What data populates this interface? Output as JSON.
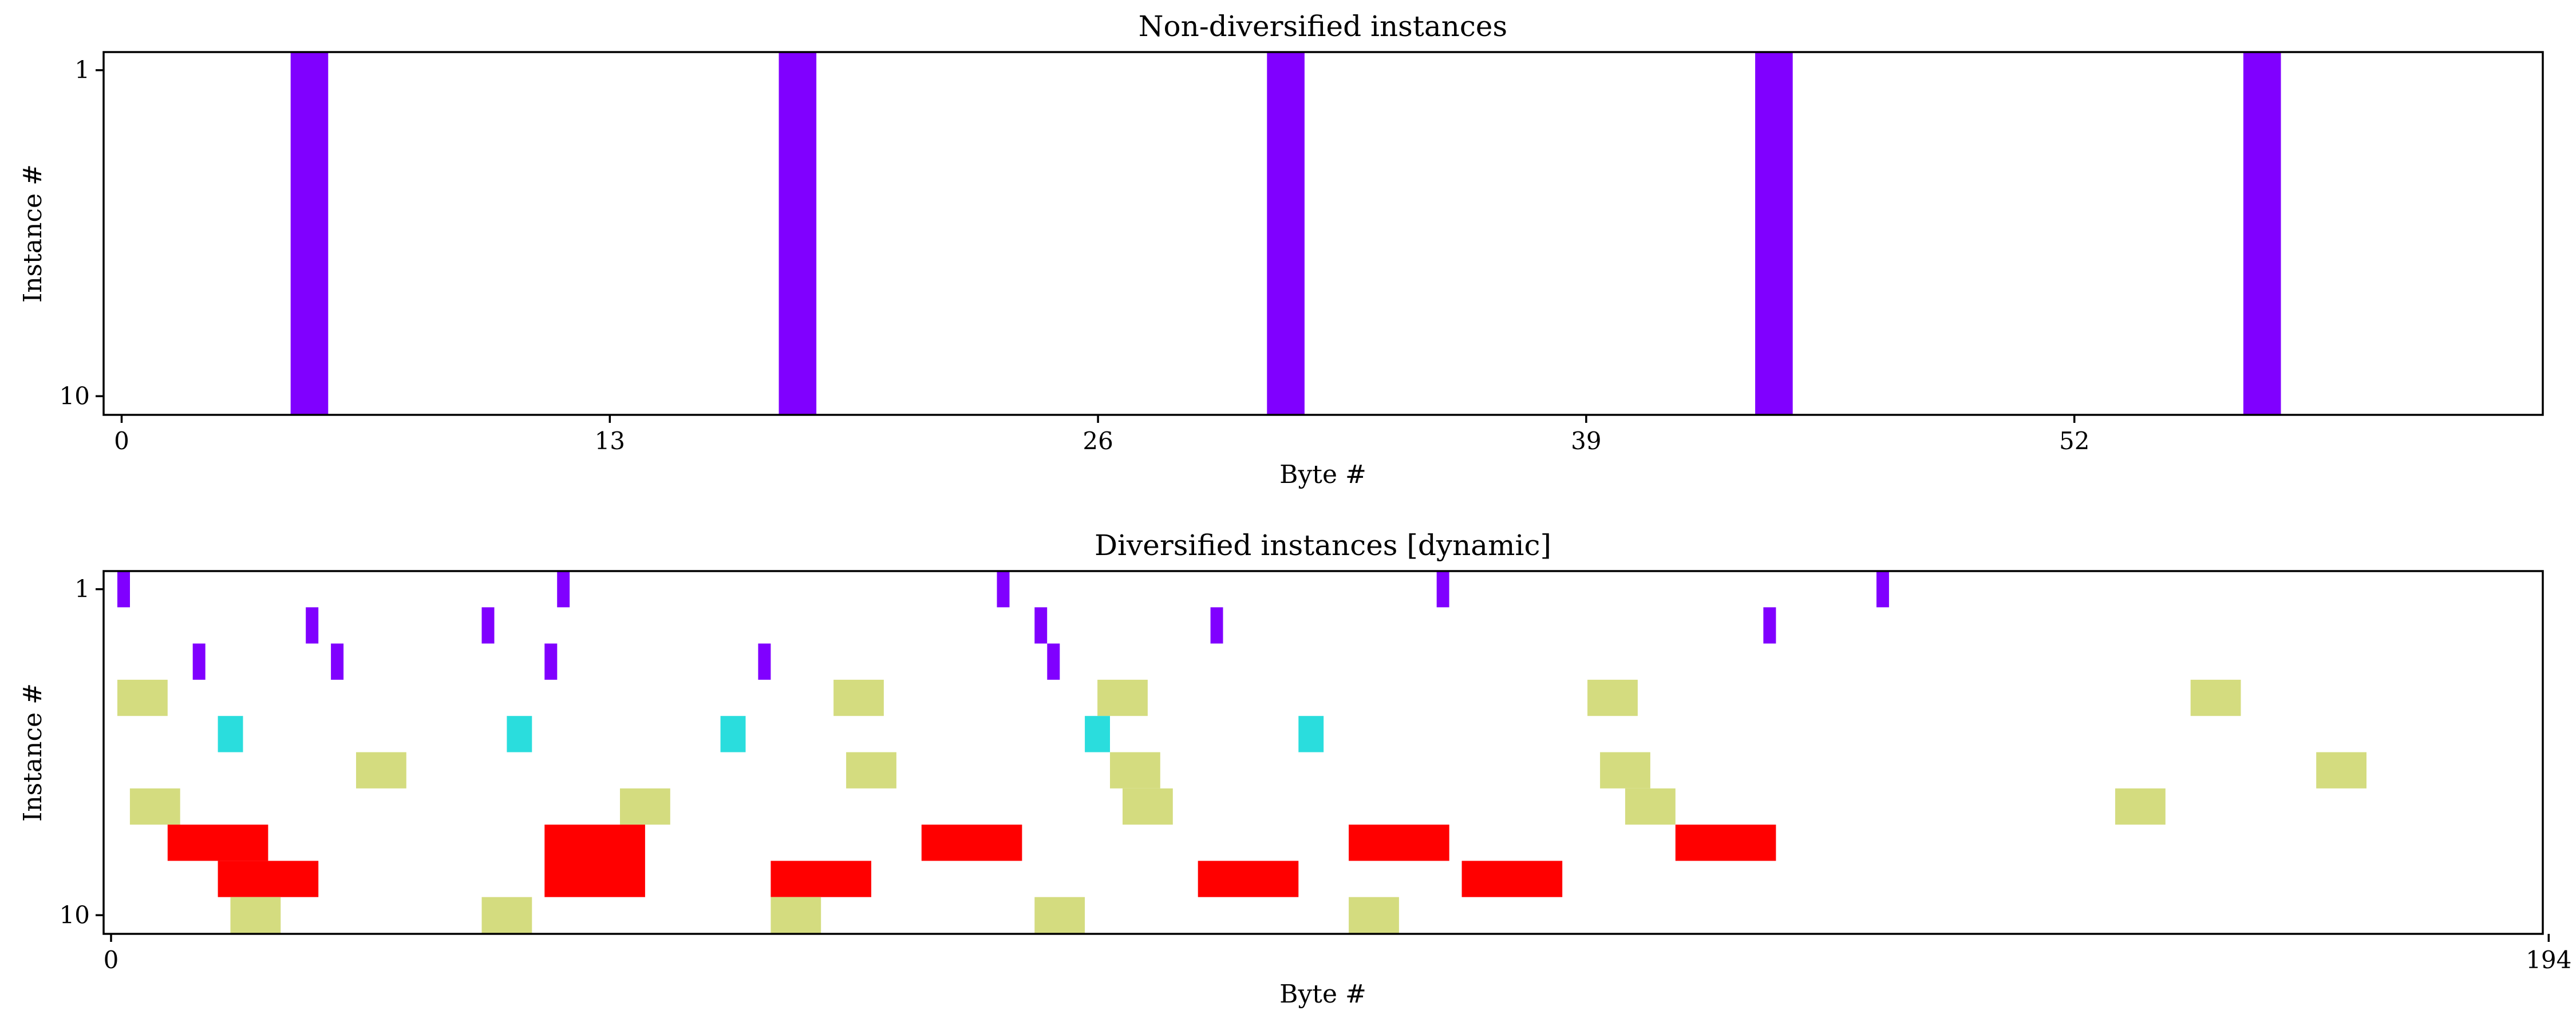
{
  "chart_data": [
    {
      "type": "heatmap",
      "title": "Non-diversified instances",
      "xlabel": "Byte #",
      "ylabel": "Instance #",
      "xlim": [
        0,
        62
      ],
      "ylim": [
        1,
        10
      ],
      "xticks": [
        "0",
        "13",
        "26",
        "39",
        "52"
      ],
      "yticks": [
        "1",
        "10"
      ],
      "grid": false,
      "blocks": [
        {
          "x0": 4.5,
          "x1": 5.5,
          "y0": 1,
          "y1": 10,
          "color": "#8000ff"
        },
        {
          "x0": 17.5,
          "x1": 18.5,
          "y0": 1,
          "y1": 10,
          "color": "#8000ff"
        },
        {
          "x0": 30.5,
          "x1": 31.5,
          "y0": 1,
          "y1": 10,
          "color": "#8000ff"
        },
        {
          "x0": 43.5,
          "x1": 44.5,
          "y0": 1,
          "y1": 10,
          "color": "#8000ff"
        },
        {
          "x0": 56.5,
          "x1": 57.5,
          "y0": 1,
          "y1": 10,
          "color": "#8000ff"
        }
      ]
    },
    {
      "type": "heatmap",
      "title": "Diversified instances [dynamic]",
      "xlabel": "Byte #",
      "ylabel": "Instance #",
      "xlim": [
        0,
        194
      ],
      "ylim": [
        1,
        10
      ],
      "xticks": [
        "0",
        "194"
      ],
      "yticks": [
        "1",
        "10"
      ],
      "grid": false,
      "blocks": [
        {
          "x0": 0.5,
          "x1": 1.5,
          "y0": 1,
          "y1": 1,
          "color": "#8000ff"
        },
        {
          "x0": 35.5,
          "x1": 36.5,
          "y0": 1,
          "y1": 1,
          "color": "#8000ff"
        },
        {
          "x0": 70.5,
          "x1": 71.5,
          "y0": 1,
          "y1": 1,
          "color": "#8000ff"
        },
        {
          "x0": 105.5,
          "x1": 106.5,
          "y0": 1,
          "y1": 1,
          "color": "#8000ff"
        },
        {
          "x0": 140.5,
          "x1": 141.5,
          "y0": 1,
          "y1": 1,
          "color": "#8000ff"
        },
        {
          "x0": 15.5,
          "x1": 16.5,
          "y0": 2,
          "y1": 2,
          "color": "#8000ff"
        },
        {
          "x0": 29.5,
          "x1": 30.5,
          "y0": 2,
          "y1": 2,
          "color": "#8000ff"
        },
        {
          "x0": 73.5,
          "x1": 74.5,
          "y0": 2,
          "y1": 2,
          "color": "#8000ff"
        },
        {
          "x0": 87.5,
          "x1": 88.5,
          "y0": 2,
          "y1": 2,
          "color": "#8000ff"
        },
        {
          "x0": 131.5,
          "x1": 132.5,
          "y0": 2,
          "y1": 2,
          "color": "#8000ff"
        },
        {
          "x0": 6.5,
          "x1": 7.5,
          "y0": 3,
          "y1": 3,
          "color": "#8000ff"
        },
        {
          "x0": 17.5,
          "x1": 18.5,
          "y0": 3,
          "y1": 3,
          "color": "#8000ff"
        },
        {
          "x0": 34.5,
          "x1": 35.5,
          "y0": 3,
          "y1": 3,
          "color": "#8000ff"
        },
        {
          "x0": 51.5,
          "x1": 52.5,
          "y0": 3,
          "y1": 3,
          "color": "#8000ff"
        },
        {
          "x0": 74.5,
          "x1": 75.5,
          "y0": 3,
          "y1": 3,
          "color": "#8000ff"
        },
        {
          "x0": 0.5,
          "x1": 4.5,
          "y0": 4,
          "y1": 4,
          "color": "#d4dc7f"
        },
        {
          "x0": 57.5,
          "x1": 61.5,
          "y0": 4,
          "y1": 4,
          "color": "#d4dc7f"
        },
        {
          "x0": 78.5,
          "x1": 82.5,
          "y0": 4,
          "y1": 4,
          "color": "#d4dc7f"
        },
        {
          "x0": 117.5,
          "x1": 121.5,
          "y0": 4,
          "y1": 4,
          "color": "#d4dc7f"
        },
        {
          "x0": 165.5,
          "x1": 169.5,
          "y0": 4,
          "y1": 4,
          "color": "#d4dc7f"
        },
        {
          "x0": 8.5,
          "x1": 10.5,
          "y0": 5,
          "y1": 5,
          "color": "#2adddd"
        },
        {
          "x0": 31.5,
          "x1": 33.5,
          "y0": 5,
          "y1": 5,
          "color": "#2adddd"
        },
        {
          "x0": 48.5,
          "x1": 50.5,
          "y0": 5,
          "y1": 5,
          "color": "#2adddd"
        },
        {
          "x0": 77.5,
          "x1": 79.5,
          "y0": 5,
          "y1": 5,
          "color": "#2adddd"
        },
        {
          "x0": 94.5,
          "x1": 96.5,
          "y0": 5,
          "y1": 5,
          "color": "#2adddd"
        },
        {
          "x0": 19.5,
          "x1": 23.5,
          "y0": 6,
          "y1": 6,
          "color": "#d4dc7f"
        },
        {
          "x0": 58.5,
          "x1": 62.5,
          "y0": 6,
          "y1": 6,
          "color": "#d4dc7f"
        },
        {
          "x0": 79.5,
          "x1": 83.5,
          "y0": 6,
          "y1": 6,
          "color": "#d4dc7f"
        },
        {
          "x0": 118.5,
          "x1": 122.5,
          "y0": 6,
          "y1": 6,
          "color": "#d4dc7f"
        },
        {
          "x0": 175.5,
          "x1": 179.5,
          "y0": 6,
          "y1": 6,
          "color": "#d4dc7f"
        },
        {
          "x0": 1.5,
          "x1": 5.5,
          "y0": 7,
          "y1": 7,
          "color": "#d4dc7f"
        },
        {
          "x0": 40.5,
          "x1": 44.5,
          "y0": 7,
          "y1": 7,
          "color": "#d4dc7f"
        },
        {
          "x0": 80.5,
          "x1": 84.5,
          "y0": 7,
          "y1": 7,
          "color": "#d4dc7f"
        },
        {
          "x0": 120.5,
          "x1": 124.5,
          "y0": 7,
          "y1": 7,
          "color": "#d4dc7f"
        },
        {
          "x0": 159.5,
          "x1": 163.5,
          "y0": 7,
          "y1": 7,
          "color": "#d4dc7f"
        },
        {
          "x0": 4.5,
          "x1": 12.5,
          "y0": 8,
          "y1": 8,
          "color": "#ff0000"
        },
        {
          "x0": 34.5,
          "x1": 42.5,
          "y0": 8,
          "y1": 9,
          "color": "#ff0000"
        },
        {
          "x0": 64.5,
          "x1": 72.5,
          "y0": 8,
          "y1": 8,
          "color": "#ff0000"
        },
        {
          "x0": 98.5,
          "x1": 106.5,
          "y0": 8,
          "y1": 8,
          "color": "#ff0000"
        },
        {
          "x0": 124.5,
          "x1": 132.5,
          "y0": 8,
          "y1": 8,
          "color": "#ff0000"
        },
        {
          "x0": 8.5,
          "x1": 16.5,
          "y0": 9,
          "y1": 9,
          "color": "#ff0000"
        },
        {
          "x0": 52.5,
          "x1": 60.5,
          "y0": 9,
          "y1": 9,
          "color": "#ff0000"
        },
        {
          "x0": 86.5,
          "x1": 94.5,
          "y0": 9,
          "y1": 9,
          "color": "#ff0000"
        },
        {
          "x0": 107.5,
          "x1": 115.5,
          "y0": 9,
          "y1": 9,
          "color": "#ff0000"
        },
        {
          "x0": 9.5,
          "x1": 13.5,
          "y0": 10,
          "y1": 10,
          "color": "#d4dc7f"
        },
        {
          "x0": 29.5,
          "x1": 33.5,
          "y0": 10,
          "y1": 10,
          "color": "#d4dc7f"
        },
        {
          "x0": 52.5,
          "x1": 56.5,
          "y0": 10,
          "y1": 10,
          "color": "#d4dc7f"
        },
        {
          "x0": 73.5,
          "x1": 77.5,
          "y0": 10,
          "y1": 10,
          "color": "#d4dc7f"
        },
        {
          "x0": 98.5,
          "x1": 102.5,
          "y0": 10,
          "y1": 10,
          "color": "#d4dc7f"
        }
      ]
    }
  ]
}
